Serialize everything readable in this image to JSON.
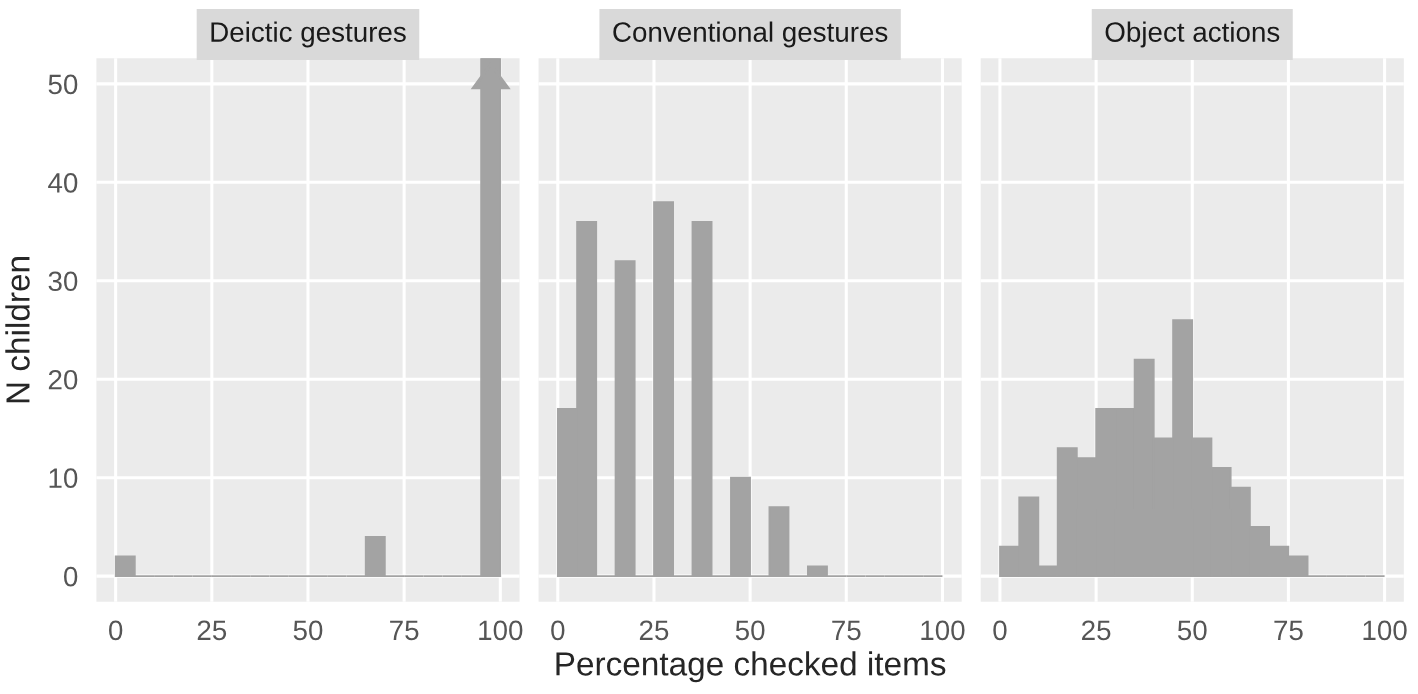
{
  "chart_data": [
    {
      "type": "histogram",
      "title": "Deictic gestures",
      "ylabel": "N children",
      "bins": [
        0,
        5,
        10,
        15,
        20,
        25,
        30,
        35,
        40,
        45,
        50,
        55,
        60,
        65,
        70,
        75,
        80,
        85,
        90,
        95,
        100
      ],
      "values": [
        2,
        0,
        0,
        0,
        0,
        0,
        0,
        0,
        0,
        0,
        0,
        0,
        0,
        4,
        0,
        0,
        0,
        0,
        0,
        52.6
      ],
      "color": "#a3a3a3",
      "xlim": [
        -5,
        105
      ],
      "xticks": [
        0,
        25,
        50,
        75,
        100
      ],
      "ylim": [
        -2.6,
        52.6
      ],
      "yticks": [
        0,
        10,
        20,
        30,
        40,
        50
      ],
      "grid": true
    },
    {
      "type": "histogram",
      "title": "Conventional gestures",
      "xlabel": "Percentage checked items",
      "bins": [
        0,
        5,
        10,
        15,
        20,
        25,
        30,
        35,
        40,
        45,
        50,
        55,
        60,
        65,
        70,
        75,
        80,
        85,
        90,
        95,
        100
      ],
      "values": [
        17,
        36,
        0,
        32,
        0,
        38,
        0,
        36,
        0,
        10,
        0,
        7,
        0,
        1,
        0,
        0,
        0,
        0,
        0,
        0
      ],
      "color": "#a3a3a3",
      "xlim": [
        -5,
        105
      ],
      "xticks": [
        0,
        25,
        50,
        75,
        100
      ],
      "ylim": [
        -2.6,
        52.6
      ],
      "yticks": [
        0,
        10,
        20,
        30,
        40,
        50
      ],
      "grid": true,
      "tick_labels": "x"
    },
    {
      "type": "histogram",
      "title": "Object actions",
      "bins": [
        0,
        5,
        10,
        15,
        20,
        25,
        30,
        35,
        40,
        45,
        50,
        55,
        60,
        65,
        70,
        75,
        80,
        85,
        90,
        95,
        100
      ],
      "values": [
        3,
        8,
        1,
        13,
        12,
        17,
        17,
        22,
        14,
        26,
        14,
        11,
        9,
        5,
        3,
        2,
        0,
        0,
        0,
        0
      ],
      "color": "#a3a3a3",
      "xlim": [
        -5,
        105
      ],
      "xticks": [
        0,
        25,
        50,
        75,
        100
      ],
      "ylim": [
        -2.6,
        52.6
      ],
      "yticks": [
        0,
        10,
        20,
        30,
        40,
        50
      ],
      "grid": true,
      "tick_labels": "x"
    }
  ]
}
